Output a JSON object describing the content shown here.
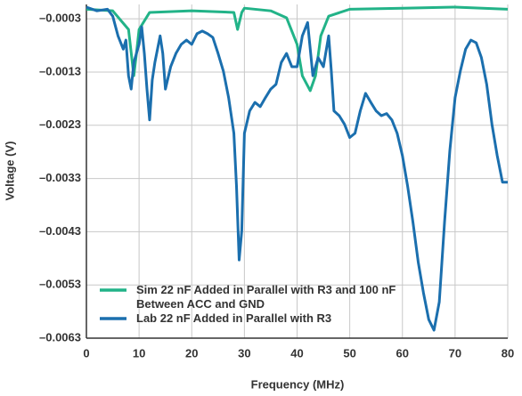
{
  "chart_data": {
    "type": "line",
    "x_label": "Frequency (MHz)",
    "y_label": "Voltage (V)",
    "xlim": [
      0,
      80
    ],
    "xticks": [
      0,
      10,
      20,
      30,
      40,
      50,
      60,
      70,
      80
    ],
    "ylim": [
      -0.0063,
      -3e-05
    ],
    "yticks": [
      {
        "value": -0.0063,
        "label": "–0.0063"
      },
      {
        "value": -0.0053,
        "label": "–0.0053"
      },
      {
        "value": -0.0043,
        "label": "–0.0043"
      },
      {
        "value": -0.0033,
        "label": "–0.0033"
      },
      {
        "value": -0.0023,
        "label": "–0.0023"
      },
      {
        "value": -0.0013,
        "label": "–0.0013"
      },
      {
        "value": -0.0003,
        "label": "–0.0003"
      }
    ],
    "grid": true,
    "legend": "lower left",
    "series": [
      {
        "name": "Sim 22 nF Added in Parallel with R3 and 100 nF Between ACC and GND",
        "color": "#22b388",
        "x": [
          0,
          5,
          8,
          9,
          9.5,
          10,
          12,
          20,
          28,
          28.7,
          29.5,
          30,
          35,
          38,
          40,
          41,
          42.5,
          43.5,
          44.5,
          46,
          50,
          60,
          70,
          80
        ],
        "values": [
          -0.00012,
          -0.00015,
          -0.0005,
          -0.00137,
          -0.00095,
          -0.0005,
          -0.00018,
          -0.00015,
          -0.00018,
          -0.0005,
          -0.00018,
          -0.0001,
          -0.00015,
          -0.00028,
          -0.00078,
          -0.00137,
          -0.00165,
          -0.00137,
          -0.00062,
          -0.00025,
          -0.00012,
          -0.0001,
          -8e-05,
          -0.00012
        ]
      },
      {
        "name": "Lab 22 nF Added in Parallel with R3",
        "color": "#1b6fae",
        "x": [
          0,
          2,
          4,
          5,
          6,
          7,
          7.5,
          8,
          8.5,
          9,
          10,
          10.5,
          11,
          11.5,
          12,
          12.5,
          13,
          14,
          14.5,
          15,
          16,
          17,
          18,
          19,
          20,
          21,
          22,
          23,
          24,
          25,
          26,
          27,
          28,
          28.5,
          29,
          29.5,
          30,
          31,
          32,
          33,
          34,
          35,
          36,
          37,
          38,
          39,
          40,
          41,
          42,
          43,
          44,
          45,
          46,
          46.5,
          47,
          48,
          49,
          50,
          51,
          52,
          53,
          54,
          55,
          56,
          57,
          58,
          59,
          60,
          61,
          62,
          63,
          64,
          65,
          66,
          67,
          68,
          69,
          70,
          71,
          72,
          73,
          74,
          75,
          76,
          77,
          78,
          79,
          80
        ],
        "values": [
          -8e-05,
          -0.00015,
          -0.00012,
          -0.00025,
          -0.00062,
          -0.00087,
          -0.0007,
          -0.00137,
          -0.00162,
          -0.00112,
          -0.00078,
          -0.00045,
          -0.00095,
          -0.00162,
          -0.0022,
          -0.00145,
          -0.00112,
          -0.00062,
          -0.00095,
          -0.00162,
          -0.0012,
          -0.00095,
          -0.00078,
          -0.0007,
          -0.00078,
          -0.00058,
          -0.00053,
          -0.00058,
          -0.00065,
          -0.00095,
          -0.00128,
          -0.00178,
          -0.00245,
          -0.00345,
          -0.00483,
          -0.00428,
          -0.00245,
          -0.00203,
          -0.00187,
          -0.00195,
          -0.00178,
          -0.00162,
          -0.00153,
          -0.00112,
          -0.00095,
          -0.0012,
          -0.0012,
          -0.00062,
          -0.00037,
          -0.00137,
          -0.00103,
          -0.0012,
          -0.00062,
          -0.00128,
          -0.00203,
          -0.00212,
          -0.00228,
          -0.00253,
          -0.00245,
          -0.00203,
          -0.0017,
          -0.00187,
          -0.00203,
          -0.00212,
          -0.00208,
          -0.0022,
          -0.00245,
          -0.00287,
          -0.00345,
          -0.00412,
          -0.00487,
          -0.00545,
          -0.00595,
          -0.00615,
          -0.00562,
          -0.00412,
          -0.00278,
          -0.00178,
          -0.00128,
          -0.00087,
          -0.0007,
          -0.00075,
          -0.00103,
          -0.00153,
          -0.00228,
          -0.00287,
          -0.00337,
          -0.00337
        ]
      }
    ]
  }
}
